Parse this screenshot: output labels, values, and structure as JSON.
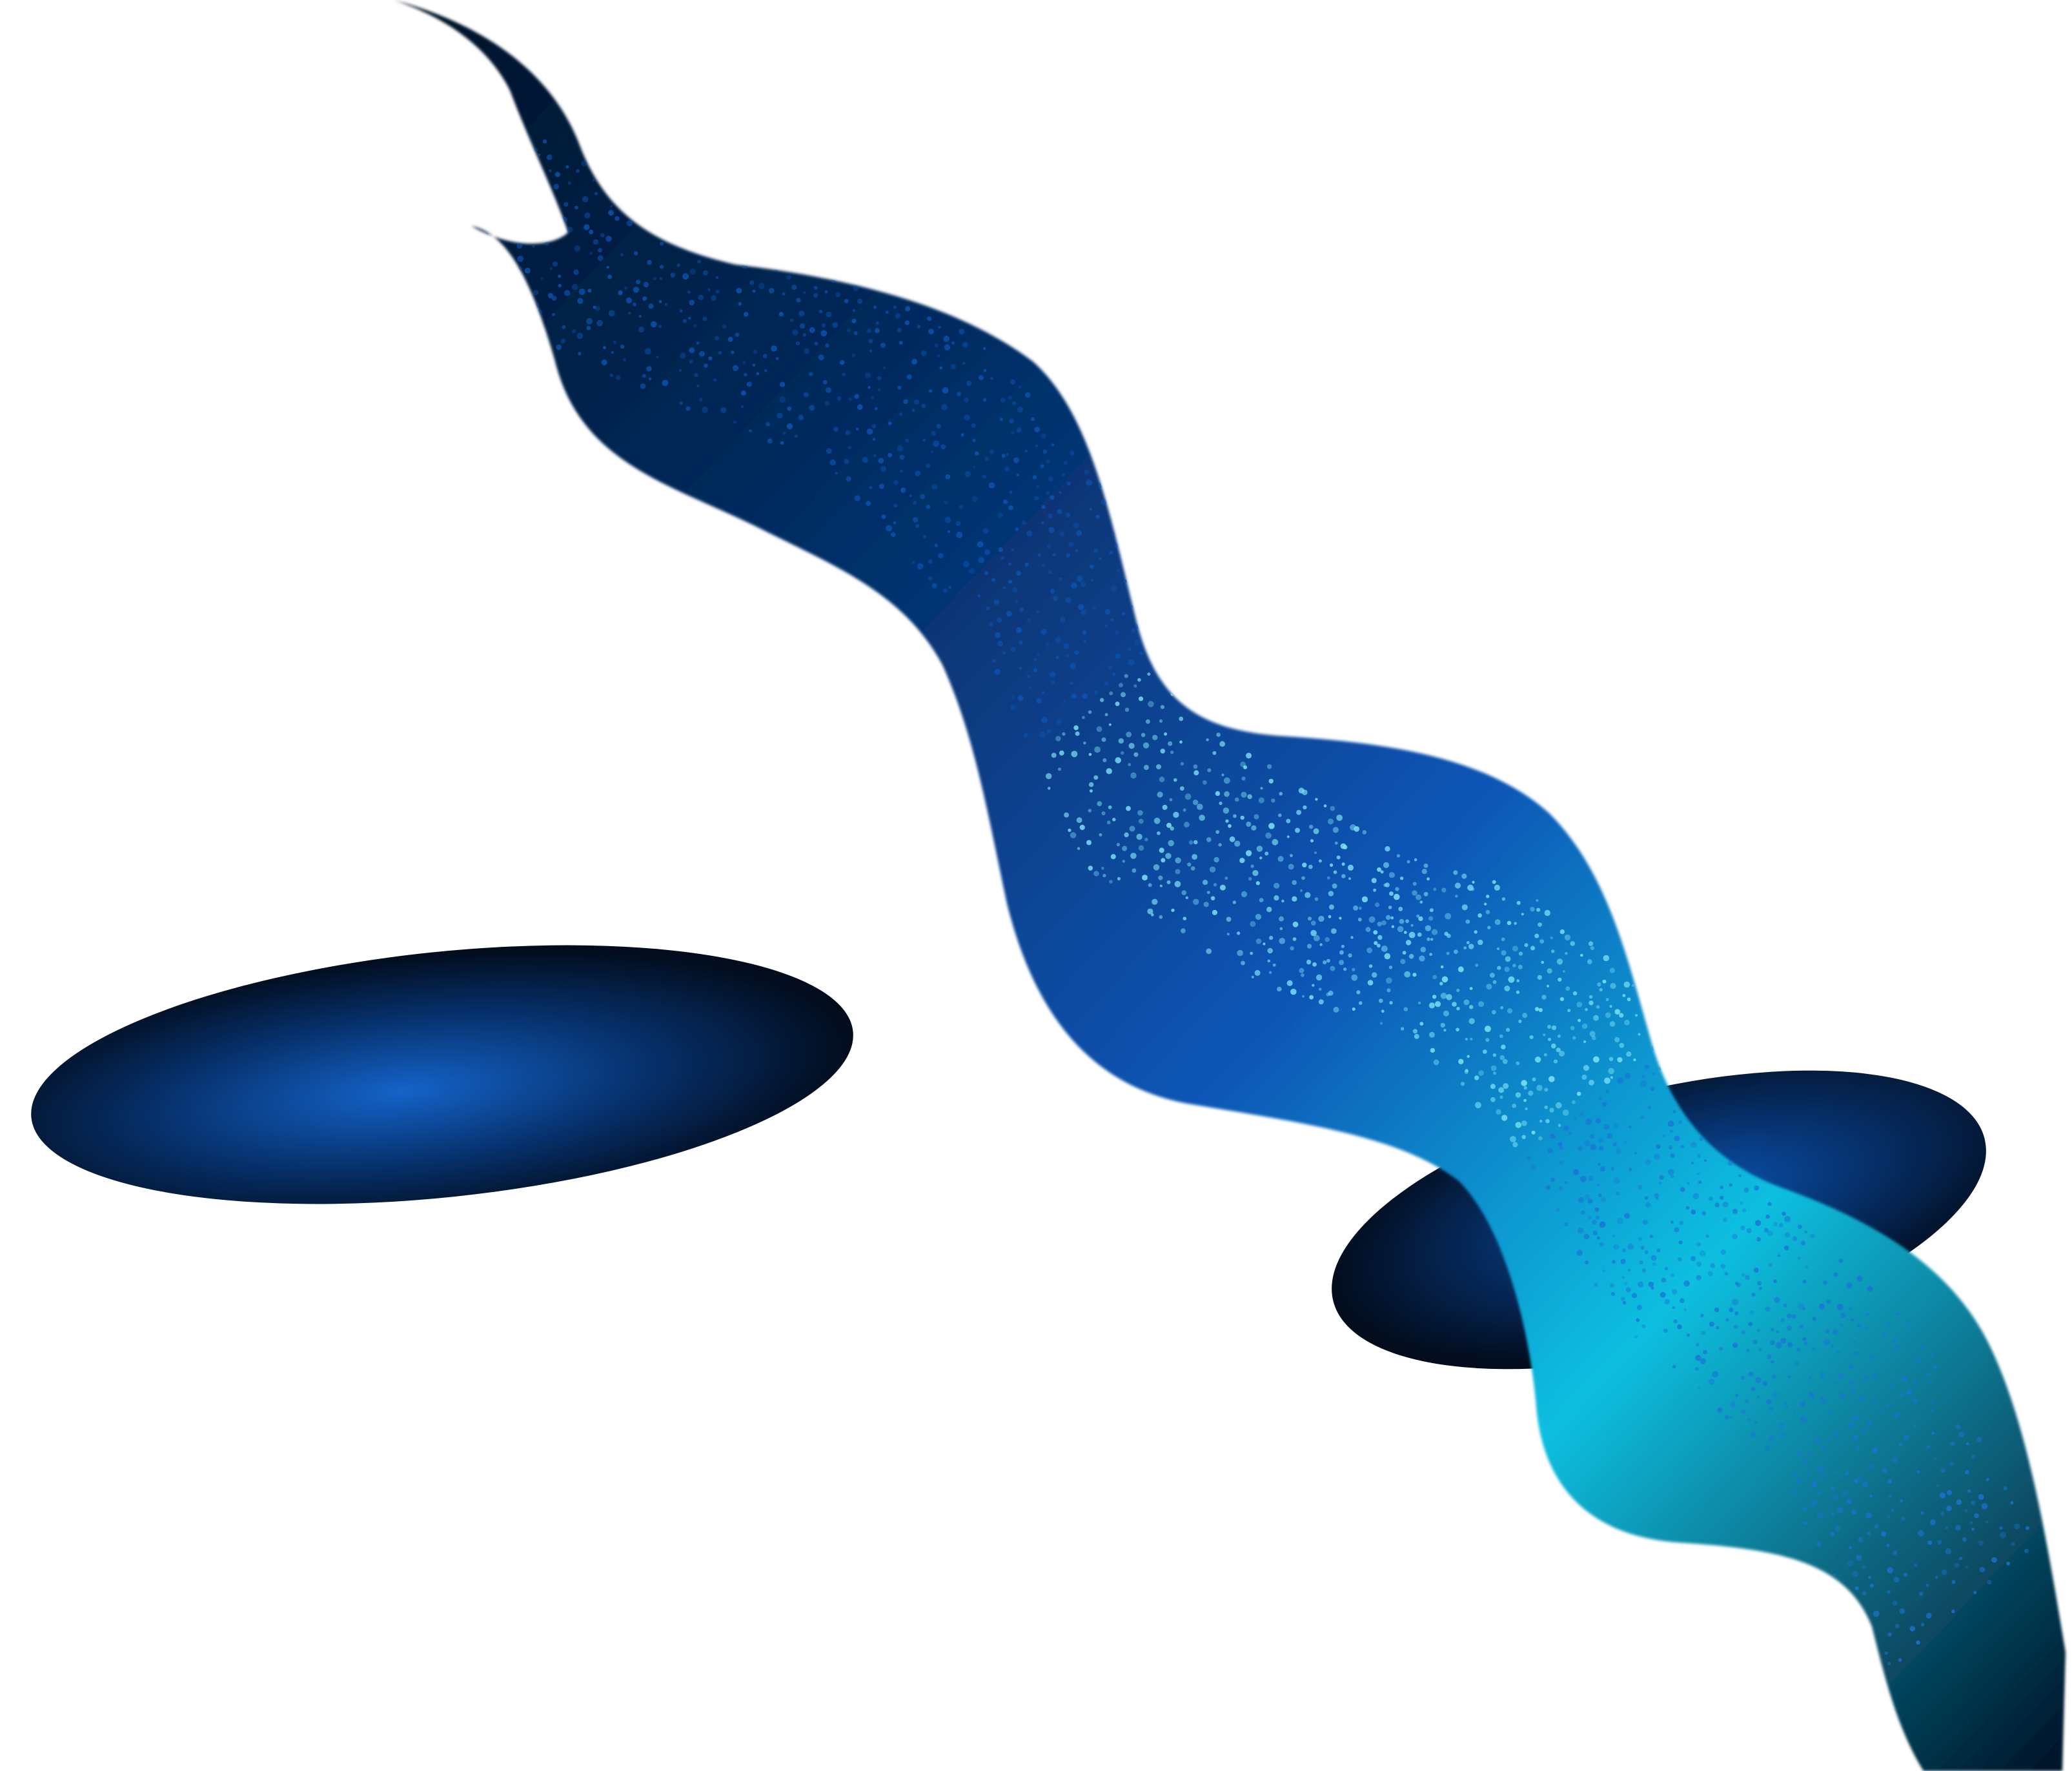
{
  "scene": {
    "background": "#ffffff",
    "colors": {
      "deep_navy": "#031226",
      "dark_blue": "#06306a",
      "mid_blue": "#0b55b5",
      "bright_blue": "#1a74d6",
      "cyan": "#0fbfe0",
      "pale_cyan": "#7fe6f5",
      "blob_glow": "#1463c9",
      "blob_edge": "#020c1c"
    },
    "elements": [
      {
        "name": "particle-wave-ribbon",
        "kind": "dotted wave"
      },
      {
        "name": "blue-glow-ellipse-left",
        "kind": "glowing disc"
      },
      {
        "name": "blue-glow-ellipse-right",
        "kind": "glowing disc"
      }
    ]
  }
}
